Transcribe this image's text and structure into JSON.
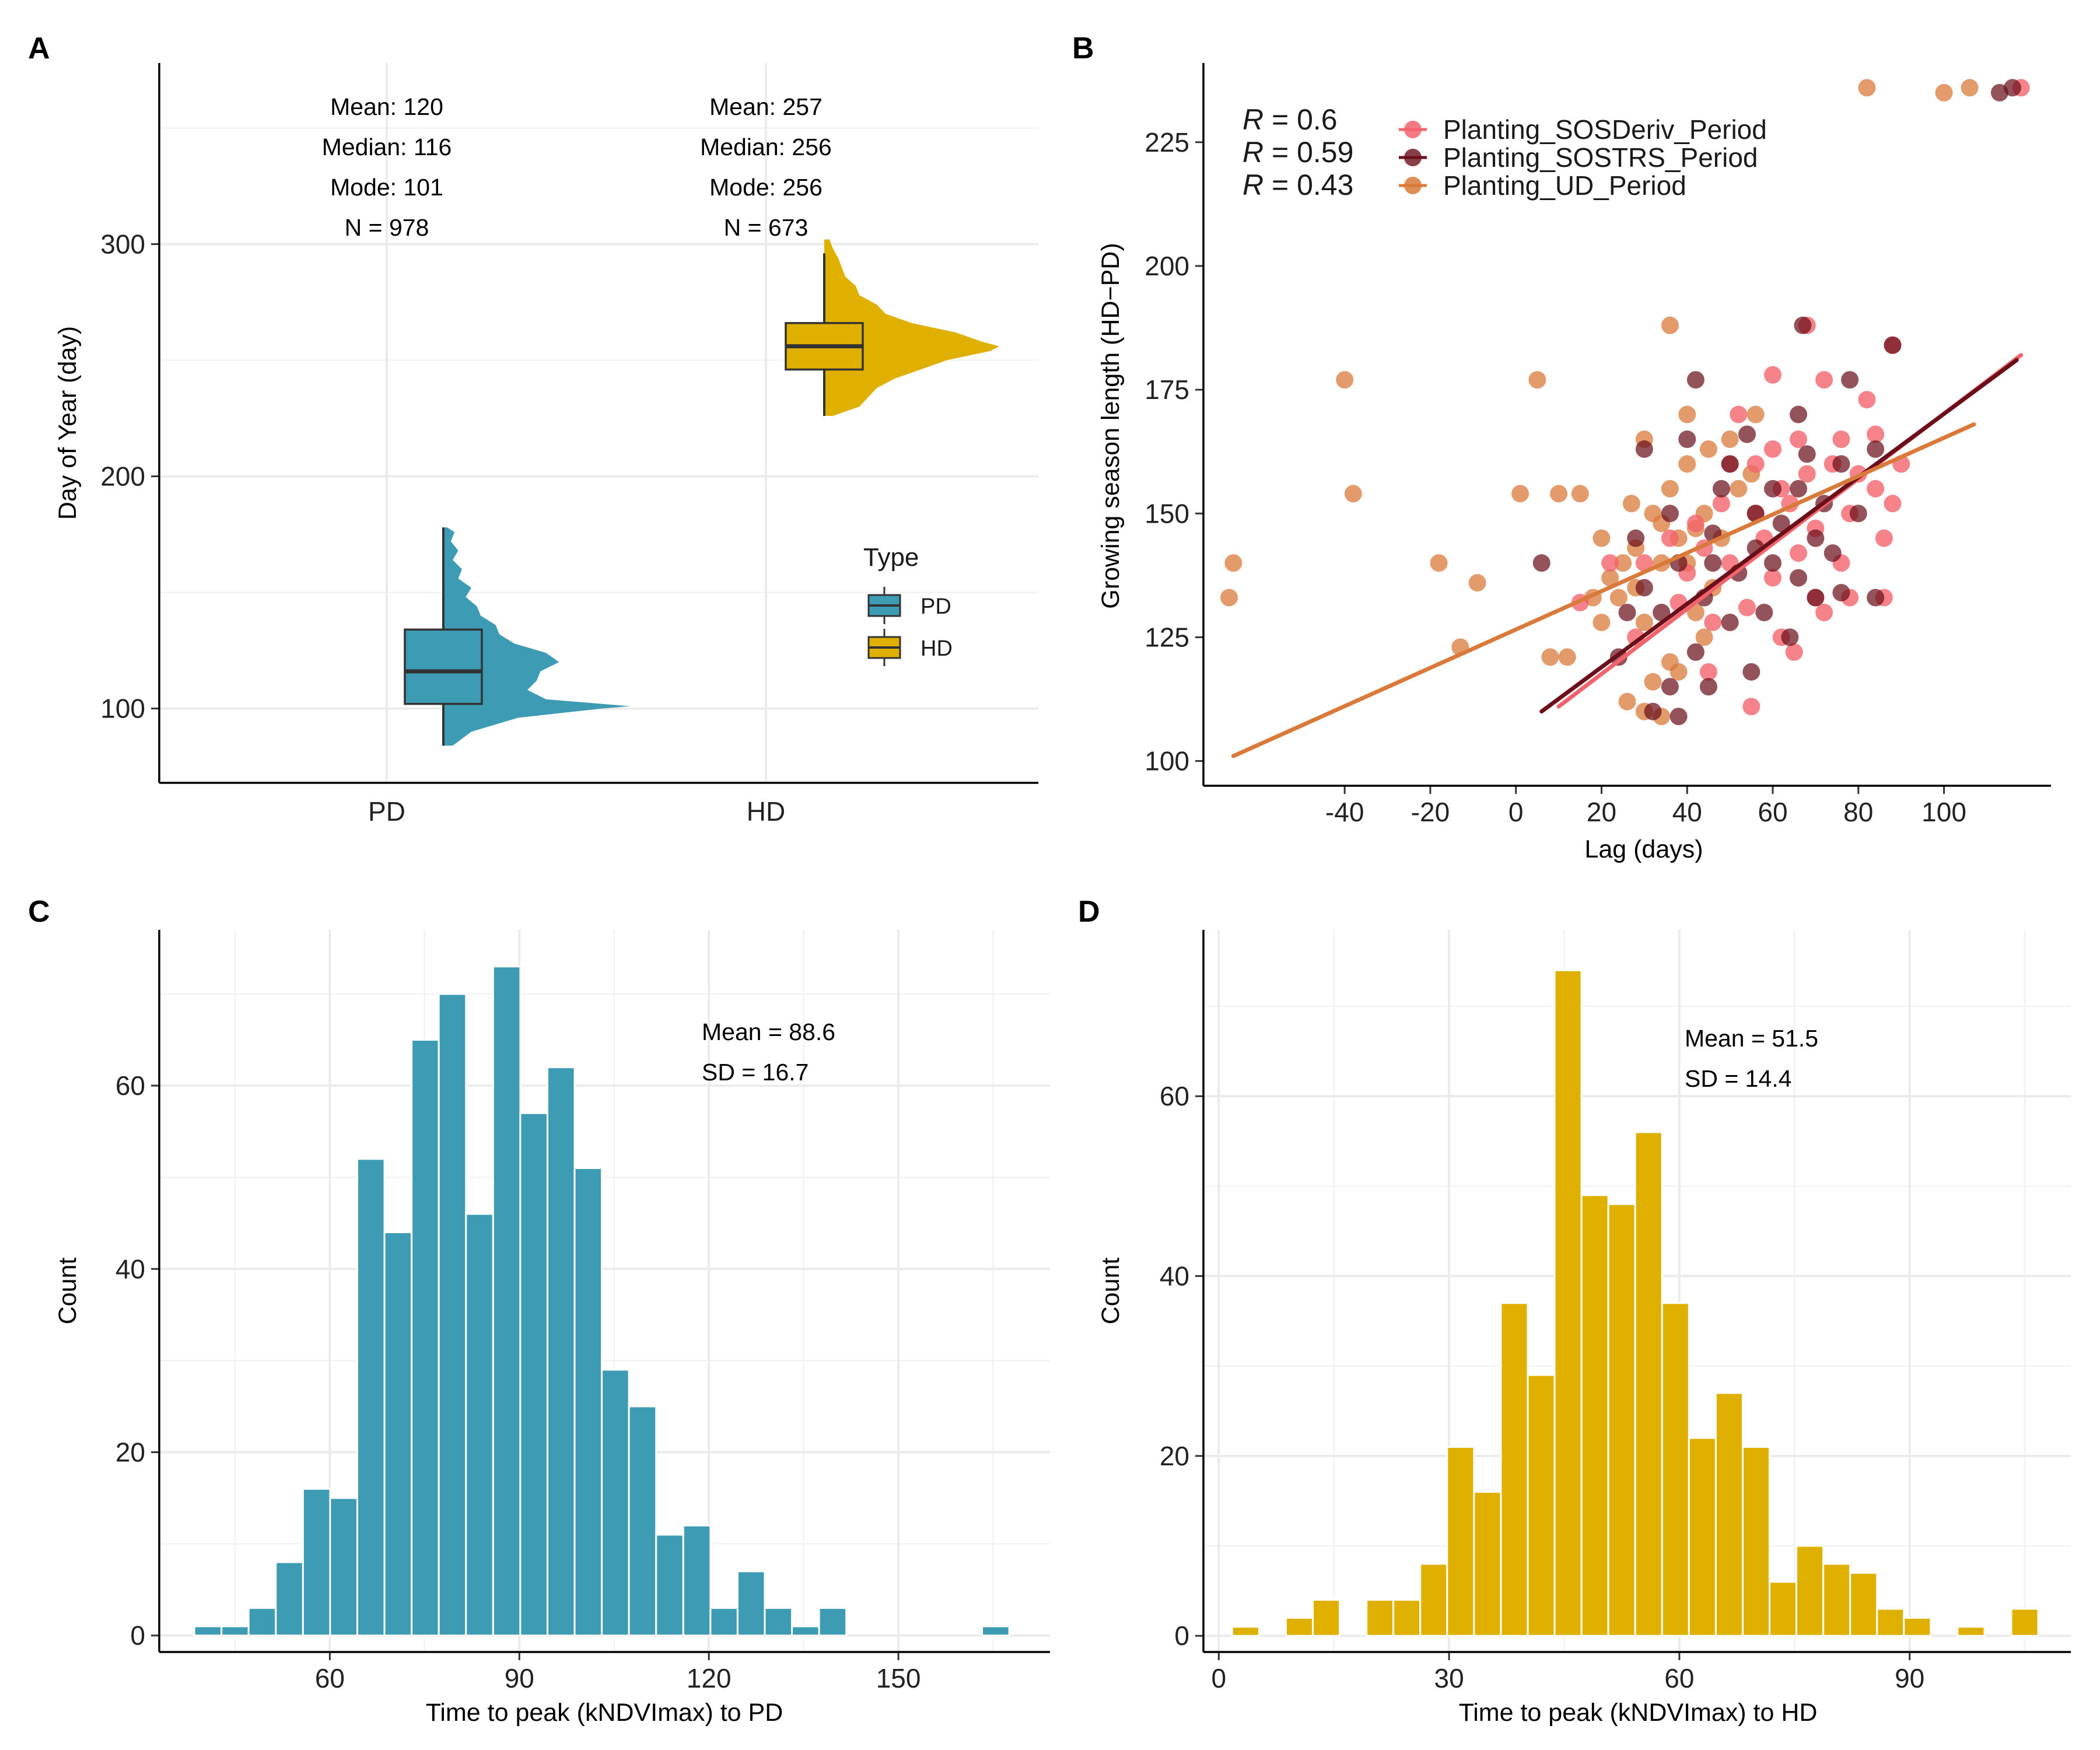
{
  "colors": {
    "pd": "#3d9bb3",
    "hd": "#e0b000",
    "sosderiv": "#f2646c",
    "sostrs": "#6b0f1a",
    "ud": "#d97a3a"
  },
  "panels": {
    "A": {
      "label": "A",
      "ylabel": "Day of Year (day)",
      "categories": [
        "PD",
        "HD"
      ],
      "legend_title": "Type",
      "legend_items": [
        "PD",
        "HD"
      ],
      "stats": [
        [
          "Mean: 120",
          "Median: 116",
          "Mode: 101",
          "N = 978"
        ],
        [
          "Mean: 257",
          "Median: 256",
          "Mode: 256",
          "N = 673"
        ]
      ],
      "yticks": [
        "100",
        "200",
        "300"
      ]
    },
    "B": {
      "label": "B",
      "xlabel": "Lag (days)",
      "ylabel": "Growing season length (HD−PD)",
      "r_labels": [
        {
          "r": "R",
          "val": " = 0.6"
        },
        {
          "r": "R",
          "val": " = 0.59"
        },
        {
          "r": "R",
          "val": " = 0.43"
        }
      ],
      "legend_items": [
        "Planting_SOSDeriv_Period",
        "Planting_SOSTRS_Period",
        "Planting_UD_Period"
      ],
      "xticks": [
        "-40",
        "-20",
        "0",
        "20",
        "40",
        "60",
        "80",
        "100"
      ],
      "yticks": [
        "100",
        "125",
        "150",
        "175",
        "200",
        "225"
      ]
    },
    "C": {
      "label": "C",
      "xlabel": "Time to peak (kNDVImax) to PD",
      "ylabel": "Count",
      "stats": [
        "Mean = 88.6",
        "SD = 16.7"
      ],
      "xticks": [
        "60",
        "90",
        "120",
        "150"
      ],
      "yticks": [
        "0",
        "20",
        "40",
        "60"
      ]
    },
    "D": {
      "label": "D",
      "xlabel": "Time to peak (kNDVImax) to HD",
      "ylabel": "Count",
      "stats": [
        "Mean = 51.5",
        "SD = 14.4"
      ],
      "xticks": [
        "0",
        "30",
        "60",
        "90"
      ],
      "yticks": [
        "0",
        "20",
        "40",
        "60"
      ]
    }
  },
  "chart_data": [
    {
      "type": "box",
      "panel": "A",
      "categories": [
        "PD",
        "HD"
      ],
      "ylim": [
        68,
        378
      ],
      "boxes": [
        {
          "name": "PD",
          "q1": 102,
          "median": 116,
          "q3": 134,
          "whisker_low": 84,
          "whisker_high": 178
        },
        {
          "name": "HD",
          "q1": 246,
          "median": 256,
          "q3": 266,
          "whisker_low": 226,
          "whisker_high": 296
        }
      ],
      "density": [
        {
          "name": "PD",
          "y": [
            84,
            90,
            96,
            100,
            101,
            104,
            108,
            112,
            116,
            120,
            124,
            128,
            132,
            136,
            140,
            144,
            148,
            152,
            156,
            160,
            164,
            168,
            172,
            176,
            178
          ],
          "d": [
            0.05,
            0.15,
            0.4,
            0.85,
            1.0,
            0.55,
            0.45,
            0.5,
            0.52,
            0.62,
            0.55,
            0.38,
            0.3,
            0.28,
            0.2,
            0.18,
            0.12,
            0.15,
            0.08,
            0.1,
            0.05,
            0.08,
            0.04,
            0.06,
            0.02
          ]
        },
        {
          "name": "HD",
          "y": [
            226,
            230,
            234,
            238,
            242,
            246,
            250,
            254,
            256,
            258,
            262,
            266,
            270,
            274,
            278,
            282,
            286,
            290,
            294,
            298,
            302
          ],
          "d": [
            0.05,
            0.2,
            0.25,
            0.3,
            0.4,
            0.55,
            0.7,
            0.95,
            1.0,
            0.9,
            0.75,
            0.5,
            0.35,
            0.3,
            0.2,
            0.18,
            0.12,
            0.1,
            0.08,
            0.05,
            0.03
          ]
        }
      ]
    },
    {
      "type": "scatter",
      "panel": "B",
      "xlim": [
        -73,
        125
      ],
      "ylim": [
        95,
        241
      ],
      "series": [
        {
          "name": "Planting_SOSDeriv_Period",
          "r": 0.6,
          "fit": [
            [
              10,
              111
            ],
            [
              118,
              182
            ]
          ],
          "points": [
            [
              118,
              236
            ],
            [
              88,
              184
            ],
            [
              68,
              188
            ],
            [
              60,
              178
            ],
            [
              72,
              177
            ],
            [
              82,
              173
            ],
            [
              84,
              166
            ],
            [
              90,
              160
            ],
            [
              88,
              152
            ],
            [
              86,
              145
            ],
            [
              86,
              133
            ],
            [
              78,
              133
            ],
            [
              70,
              133
            ],
            [
              60,
              137
            ],
            [
              50,
              140
            ],
            [
              40,
              138
            ],
            [
              30,
              140
            ],
            [
              22,
              140
            ],
            [
              15,
              132
            ],
            [
              62,
              155
            ],
            [
              70,
              147
            ],
            [
              76,
              140
            ],
            [
              74,
              160
            ],
            [
              66,
              165
            ],
            [
              56,
              160
            ],
            [
              48,
              152
            ],
            [
              42,
              148
            ],
            [
              36,
              145
            ],
            [
              28,
              125
            ],
            [
              45,
              118
            ],
            [
              55,
              111
            ],
            [
              65,
              122
            ],
            [
              80,
              158
            ],
            [
              52,
              170
            ],
            [
              58,
              145
            ],
            [
              64,
              152
            ],
            [
              78,
              150
            ],
            [
              84,
              155
            ],
            [
              72,
              130
            ],
            [
              62,
              125
            ],
            [
              54,
              131
            ],
            [
              46,
              128
            ],
            [
              38,
              132
            ],
            [
              44,
              143
            ],
            [
              50,
              160
            ],
            [
              60,
              163
            ],
            [
              68,
              158
            ],
            [
              76,
              165
            ],
            [
              66,
              142
            ],
            [
              56,
              150
            ]
          ]
        },
        {
          "name": "Planting_SOSTRS_Period",
          "r": 0.59,
          "fit": [
            [
              6,
              110
            ],
            [
              117,
              181
            ]
          ],
          "points": [
            [
              116,
              236
            ],
            [
              113,
              235
            ],
            [
              88,
              184
            ],
            [
              67,
              188
            ],
            [
              42,
              177
            ],
            [
              78,
              177
            ],
            [
              66,
              170
            ],
            [
              54,
              166
            ],
            [
              84,
              163
            ],
            [
              76,
              160
            ],
            [
              66,
              155
            ],
            [
              56,
              150
            ],
            [
              46,
              146
            ],
            [
              38,
              140
            ],
            [
              30,
              135
            ],
            [
              26,
              130
            ],
            [
              24,
              121
            ],
            [
              36,
              115
            ],
            [
              45,
              115
            ],
            [
              38,
              109
            ],
            [
              32,
              110
            ],
            [
              55,
              118
            ],
            [
              64,
              125
            ],
            [
              70,
              133
            ],
            [
              84,
              133
            ],
            [
              76,
              134
            ],
            [
              50,
              128
            ],
            [
              42,
              122
            ],
            [
              60,
              140
            ],
            [
              50,
              160
            ],
            [
              40,
              165
            ],
            [
              30,
              163
            ],
            [
              70,
              145
            ],
            [
              80,
              150
            ],
            [
              62,
              148
            ],
            [
              52,
              138
            ],
            [
              44,
              133
            ],
            [
              34,
              130
            ],
            [
              58,
              130
            ],
            [
              66,
              137
            ],
            [
              74,
              142
            ],
            [
              48,
              155
            ],
            [
              56,
              143
            ],
            [
              60,
              155
            ],
            [
              68,
              162
            ],
            [
              72,
              152
            ],
            [
              6,
              140
            ],
            [
              36,
              150
            ],
            [
              46,
              140
            ],
            [
              28,
              145
            ]
          ]
        },
        {
          "name": "Planting_UD_Period",
          "r": 0.43,
          "fit": [
            [
              -66,
              101
            ],
            [
              107,
              168
            ]
          ],
          "points": [
            [
              106,
              236
            ],
            [
              100,
              235
            ],
            [
              82,
              236
            ],
            [
              -66,
              140
            ],
            [
              -67,
              133
            ],
            [
              -40,
              177
            ],
            [
              -38,
              154
            ],
            [
              -18,
              140
            ],
            [
              -9,
              136
            ],
            [
              -13,
              123
            ],
            [
              1,
              154
            ],
            [
              5,
              177
            ],
            [
              10,
              154
            ],
            [
              15,
              154
            ],
            [
              18,
              133
            ],
            [
              20,
              128
            ],
            [
              24,
              133
            ],
            [
              20,
              145
            ],
            [
              30,
              128
            ],
            [
              28,
              135
            ],
            [
              34,
              140
            ],
            [
              32,
              150
            ],
            [
              36,
              155
            ],
            [
              40,
              160
            ],
            [
              30,
              165
            ],
            [
              36,
              188
            ],
            [
              40,
              170
            ],
            [
              45,
              163
            ],
            [
              44,
              150
            ],
            [
              48,
              145
            ],
            [
              52,
              155
            ],
            [
              55,
              158
            ],
            [
              50,
              165
            ],
            [
              56,
              170
            ],
            [
              46,
              135
            ],
            [
              40,
              140
            ],
            [
              42,
              130
            ],
            [
              36,
              120
            ],
            [
              32,
              116
            ],
            [
              26,
              112
            ],
            [
              30,
              110
            ],
            [
              34,
              109
            ],
            [
              38,
              118
            ],
            [
              44,
              125
            ],
            [
              25,
              140
            ],
            [
              22,
              137
            ],
            [
              28,
              143
            ],
            [
              34,
              148
            ],
            [
              38,
              145
            ],
            [
              42,
              147
            ],
            [
              12,
              121
            ],
            [
              8,
              121
            ],
            [
              27,
              152
            ]
          ]
        }
      ]
    },
    {
      "type": "bar",
      "panel": "C",
      "xlabel": "Time to peak (kNDVImax) to PD",
      "ylabel": "Count",
      "xlim": [
        33,
        174
      ],
      "ylim": [
        -1.8,
        77
      ],
      "bin_width": 4.3,
      "bins": [
        [
          40.7,
          1
        ],
        [
          45.0,
          1
        ],
        [
          49.3,
          3
        ],
        [
          53.6,
          8
        ],
        [
          57.9,
          16
        ],
        [
          62.2,
          15
        ],
        [
          66.5,
          52
        ],
        [
          70.8,
          44
        ],
        [
          75.1,
          65
        ],
        [
          79.4,
          70
        ],
        [
          83.7,
          46
        ],
        [
          88.0,
          73
        ],
        [
          92.3,
          57
        ],
        [
          96.6,
          62
        ],
        [
          100.9,
          51
        ],
        [
          105.2,
          29
        ],
        [
          109.5,
          25
        ],
        [
          113.8,
          11
        ],
        [
          118.1,
          12
        ],
        [
          122.4,
          3
        ],
        [
          126.7,
          7
        ],
        [
          131.0,
          3
        ],
        [
          135.3,
          1
        ],
        [
          139.6,
          3
        ],
        [
          165.4,
          1
        ]
      ]
    },
    {
      "type": "bar",
      "panel": "D",
      "xlabel": "Time to peak (kNDVImax) to HD",
      "ylabel": "Count",
      "xlim": [
        -2,
        111
      ],
      "ylim": [
        -1.8,
        78.5
      ],
      "bin_width": 3.5,
      "bins": [
        [
          3.5,
          1
        ],
        [
          10.5,
          2
        ],
        [
          14.0,
          4
        ],
        [
          21.0,
          4
        ],
        [
          24.5,
          4
        ],
        [
          28.0,
          8
        ],
        [
          31.5,
          21
        ],
        [
          35.0,
          16
        ],
        [
          38.5,
          37
        ],
        [
          42.0,
          29
        ],
        [
          45.5,
          74
        ],
        [
          49.0,
          49
        ],
        [
          52.5,
          48
        ],
        [
          56.0,
          56
        ],
        [
          59.5,
          37
        ],
        [
          63.0,
          22
        ],
        [
          66.5,
          27
        ],
        [
          70.0,
          21
        ],
        [
          73.5,
          6
        ],
        [
          77.0,
          10
        ],
        [
          80.5,
          8
        ],
        [
          84.0,
          7
        ],
        [
          87.5,
          3
        ],
        [
          91.0,
          2
        ],
        [
          98.0,
          1
        ],
        [
          105.0,
          3
        ]
      ]
    }
  ]
}
